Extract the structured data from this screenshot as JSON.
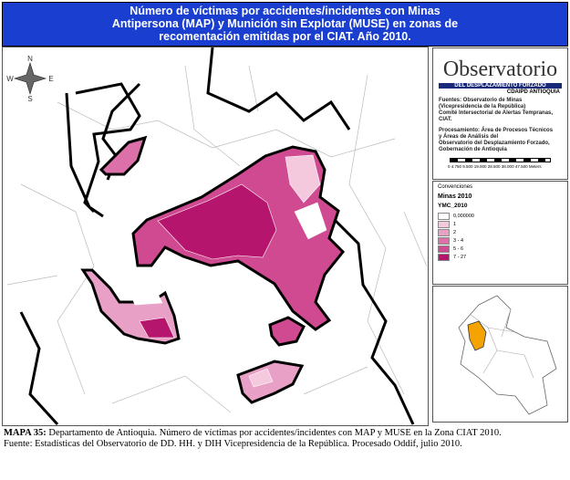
{
  "header": {
    "title_lines": [
      "Número de víctimas por accidentes/incidentes con Minas",
      "Antipersona (MAP) y Munición sin Explotar (MUSE) en zonas de",
      "recomentación emitidas por el CIAT. Año 2010."
    ]
  },
  "compass": {
    "n": "N",
    "s": "S",
    "e": "E",
    "w": "W"
  },
  "logo": {
    "name": "Observatorio",
    "band": "DEL DESPLAZAMIENTO FORZADO",
    "sub": "CDAIPD ANTIOQUIA"
  },
  "sources": [
    "Fuentes: Observatorio de Minas",
    "(Vicepresidencia de la República)",
    "Comité Intersectorial de Alertas Tempranas, CIAT."
  ],
  "processing": [
    "Procesamiento: Área de Procesos Técnicos",
    "y Áreas de Análisis del",
    "Observatorio del Desplazamiento Forzado,",
    "Gobernación de Antioquia"
  ],
  "scale": {
    "ticks": "0 4.750 9.500 19.000 28.500 38.000 47.500",
    "unit": "Meters"
  },
  "legend": {
    "heading": "Convenciones",
    "layer": "Minas 2010",
    "field": "YMC_2010",
    "items": [
      {
        "label": "0,000000",
        "color": "#ffffff"
      },
      {
        "label": "1",
        "color": "#f4c9de"
      },
      {
        "label": "2",
        "color": "#e9a0c6"
      },
      {
        "label": "3 - 4",
        "color": "#dc70a9"
      },
      {
        "label": "5 - 6",
        "color": "#cf4a91"
      },
      {
        "label": "7 - 27",
        "color": "#b5156c"
      }
    ]
  },
  "caption": {
    "label": "MAPA 35:",
    "text": "Departamento de Antioquia. Número de víctimas por accidentes/incidentes con MAP y MUSE en la Zona CIAT 2010. Fuente: Estadísticas del Observatorio de DD. HH. y DIH Vicepresidencia de la República. Procesado Oddif, julio 2010."
  }
}
